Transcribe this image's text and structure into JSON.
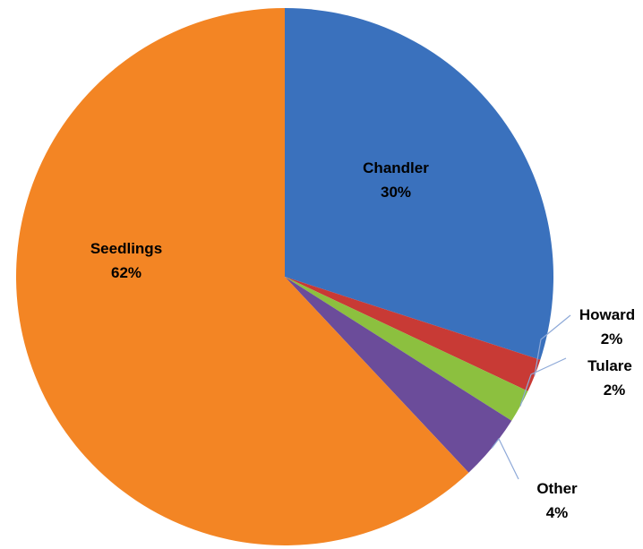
{
  "chart_data": {
    "type": "pie",
    "title": "",
    "start_angle_deg": 0,
    "direction": "clockwise",
    "legend": "none",
    "slices": [
      {
        "label": "Chandler",
        "value": 30,
        "value_label": "30%",
        "color": "#3a71bd",
        "label_position": "inside"
      },
      {
        "label": "Howard",
        "value": 2,
        "value_label": "2%",
        "color": "#c83a35",
        "label_position": "outside"
      },
      {
        "label": "Tulare",
        "value": 2,
        "value_label": "2%",
        "color": "#8cc03f",
        "label_position": "outside"
      },
      {
        "label": "Other",
        "value": 4,
        "value_label": "4%",
        "color": "#6b4c9a",
        "label_position": "outside"
      },
      {
        "label": "Seedlings",
        "value": 62,
        "value_label": "62%",
        "color": "#f38524",
        "label_position": "inside"
      }
    ]
  }
}
